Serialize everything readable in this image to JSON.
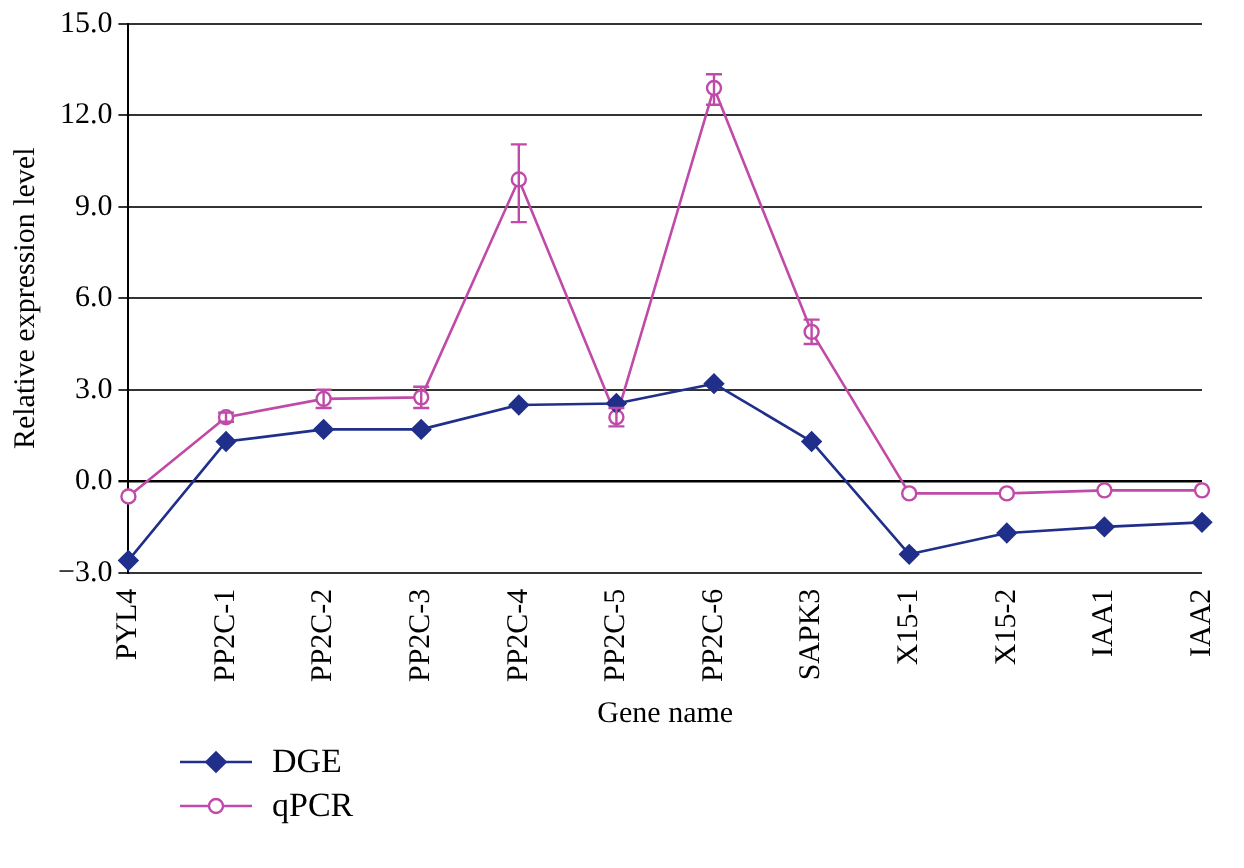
{
  "chart_data": {
    "type": "line",
    "xlabel": "Gene name",
    "ylabel": "Relative expression level",
    "categories": [
      "PYL4",
      "PP2C-1",
      "PP2C-2",
      "PP2C-3",
      "PP2C-4",
      "PP2C-5",
      "PP2C-6",
      "SAPK3",
      "X15-1",
      "X15-2",
      "IAA1",
      "IAA2"
    ],
    "series": [
      {
        "name": "DGE",
        "color": "#1f2f8a",
        "marker": "diamond",
        "values": [
          -2.6,
          1.3,
          1.7,
          1.7,
          2.5,
          2.55,
          3.2,
          1.3,
          -2.4,
          -1.7,
          -1.5,
          -1.35
        ]
      },
      {
        "name": "qPCR",
        "color": "#c04aa8",
        "marker": "circle",
        "values": [
          -0.5,
          2.1,
          2.7,
          2.75,
          9.9,
          2.1,
          12.9,
          4.9,
          -0.4,
          -0.4,
          -0.3,
          -0.3
        ],
        "errors": [
          null,
          0.15,
          0.3,
          0.35,
          [
            8.5,
            11.05
          ],
          0.3,
          [
            12.35,
            13.35
          ],
          0.4,
          null,
          null,
          null,
          null
        ]
      }
    ],
    "ylim": [
      -3,
      15
    ],
    "yticks": [
      {
        "value": -3,
        "label": "−3.0"
      },
      {
        "value": 0,
        "label": "0.0"
      },
      {
        "value": 3,
        "label": "3.0"
      },
      {
        "value": 6,
        "label": "6.0"
      },
      {
        "value": 9,
        "label": "9.0"
      },
      {
        "value": 12,
        "label": "12.0"
      },
      {
        "value": 15,
        "label": "15.0"
      }
    ],
    "grid": "y",
    "legend": "bottom left",
    "line_style": "solid"
  }
}
